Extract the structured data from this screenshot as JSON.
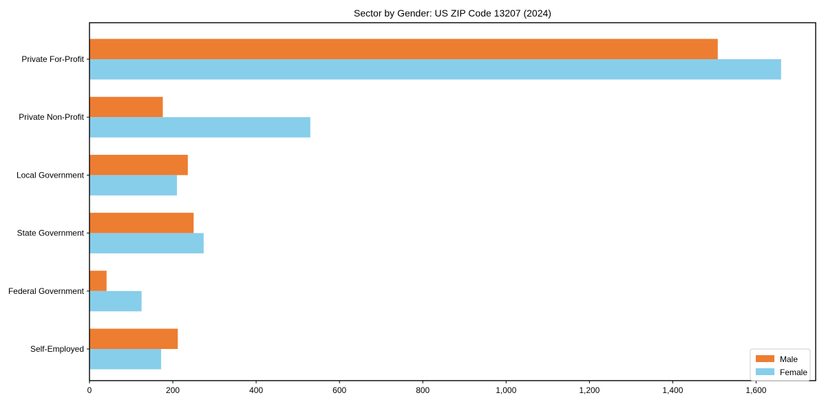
{
  "figure": {
    "title": "Sector by Gender: US ZIP Code 13207 (2024)"
  },
  "chart_data": {
    "type": "bar",
    "orientation": "horizontal",
    "title": "Sector by Gender: US ZIP Code 13207 (2024)",
    "categories": [
      "Private For-Profit",
      "Private Non-Profit",
      "Local Government",
      "State Government",
      "Federal Government",
      "Self-Employed"
    ],
    "series": [
      {
        "name": "Male",
        "color": "#ED7D31",
        "values": [
          1508,
          176,
          236,
          250,
          41,
          212
        ]
      },
      {
        "name": "Female",
        "color": "#87CEEB",
        "values": [
          1660,
          530,
          210,
          274,
          125,
          172
        ]
      }
    ],
    "xlabel": "",
    "ylabel": "",
    "xlim": [
      0,
      1743
    ],
    "x_ticks": [
      0,
      200,
      400,
      600,
      800,
      1000,
      1200,
      1400,
      1600
    ],
    "x_tick_labels": [
      "0",
      "200",
      "400",
      "600",
      "800",
      "1,000",
      "1,200",
      "1,400",
      "1,600"
    ],
    "grid": false,
    "legend": {
      "position": "lower right",
      "entries": [
        "Male",
        "Female"
      ]
    },
    "frame_color": "#000000",
    "legend_border_color": "#cccccc"
  }
}
